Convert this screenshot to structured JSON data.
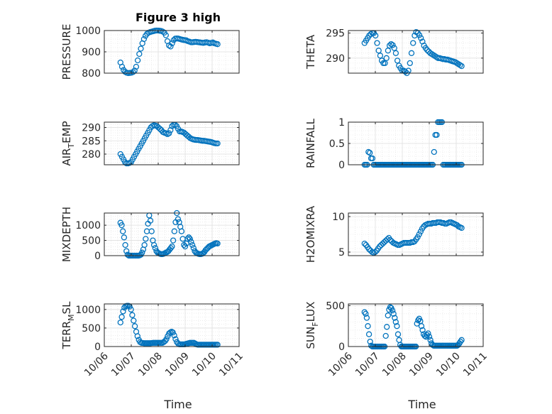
{
  "figure": {
    "title": "Figure 3 high",
    "xlabel": "Time"
  },
  "x_tick_labels": [
    "10/06",
    "10/07",
    "10/08",
    "10/09",
    "10/10",
    "10/11"
  ],
  "colors": {
    "marker": "#0072BD",
    "grid": "#dfdfdf",
    "axis": "#262626"
  },
  "chart_data": [
    {
      "type": "scatter",
      "name": "pressure",
      "ylabel": "PRESSURE",
      "ylim": [
        800,
        1000
      ],
      "yticks": [
        800,
        900,
        1000
      ],
      "y": [
        850,
        830,
        815,
        806,
        802,
        800,
        801,
        802,
        805,
        812,
        830,
        860,
        890,
        915,
        940,
        960,
        975,
        985,
        990,
        993,
        995,
        997,
        999,
        1000,
        1000,
        999,
        998,
        995,
        990,
        978,
        950,
        930,
        925,
        940,
        955,
        962,
        963,
        962,
        960,
        958,
        956,
        955,
        954,
        950,
        948,
        945,
        945,
        946,
        947,
        946,
        945,
        944,
        943,
        942,
        944,
        945,
        943,
        940,
        942,
        944,
        940,
        938,
        936
      ]
    },
    {
      "type": "scatter",
      "name": "theta",
      "ylabel": "THETA",
      "ylim": [
        287,
        295.5
      ],
      "yticks": [
        290,
        295
      ],
      "y": [
        293,
        293.5,
        294,
        294.5,
        294.8,
        295,
        295,
        294.5,
        293,
        291.5,
        290.5,
        289.5,
        289,
        289,
        290,
        291.5,
        292.5,
        292.8,
        292.6,
        292,
        291,
        289.5,
        288.5,
        288,
        287.5,
        287.5,
        287.3,
        287,
        287.5,
        289,
        291,
        293,
        294.5,
        295.2,
        295,
        294.6,
        294,
        293.3,
        292.5,
        292,
        291.6,
        291.3,
        291,
        290.8,
        290.6,
        290.4,
        290.2,
        290,
        290,
        289.9,
        289.8,
        289.8,
        289.7,
        289.7,
        289.6,
        289.5,
        289.4,
        289.3,
        289.2,
        289,
        288.8,
        288.6,
        288.4
      ]
    },
    {
      "type": "scatter",
      "name": "air_temp",
      "ylabel": "AIR_TEMP",
      "ylabel_display": {
        "main": "AIR",
        "sub": "T",
        "rest": "EMP"
      },
      "ylim": [
        276,
        292
      ],
      "yticks": [
        280,
        285,
        290
      ],
      "y": [
        280,
        279,
        278,
        277,
        276.5,
        276.5,
        276.7,
        277,
        278,
        279,
        280,
        281,
        282,
        283,
        284,
        285,
        286,
        287,
        288,
        289,
        290,
        290.5,
        290.8,
        290.7,
        290.5,
        290,
        289.5,
        289,
        288.3,
        288,
        287.8,
        287.5,
        287.8,
        289,
        290.5,
        291,
        291,
        290.5,
        289.5,
        288.5,
        288.5,
        288.3,
        288,
        287.5,
        287,
        286.5,
        286,
        285.7,
        285.5,
        285.4,
        285.3,
        285.3,
        285.2,
        285.1,
        285,
        285,
        284.9,
        284.8,
        284.7,
        284.6,
        284.5,
        284.3,
        284.1,
        284,
        284
      ]
    },
    {
      "type": "scatter",
      "name": "rainfall",
      "ylabel": "RAINFALL",
      "ylim": [
        0,
        1
      ],
      "yticks": [
        0,
        0.5,
        1
      ],
      "y": [
        0,
        0,
        0,
        0.3,
        0.28,
        0.15,
        0.15,
        0,
        0,
        0,
        0,
        0,
        0,
        0,
        0,
        0,
        0,
        0,
        0,
        0,
        0,
        0,
        0,
        0,
        0,
        0,
        0,
        0,
        0,
        0,
        0,
        0,
        0,
        0,
        0,
        0,
        0,
        0,
        0,
        0,
        0,
        0,
        0,
        0,
        0,
        0,
        0,
        0,
        0,
        0,
        0,
        0,
        0,
        0.3,
        0.7,
        0.7,
        1,
        1,
        1,
        1,
        0,
        0,
        0,
        0,
        0,
        0,
        0,
        0,
        0,
        0,
        0,
        0,
        0,
        0,
        0
      ]
    },
    {
      "type": "scatter",
      "name": "mixdepth",
      "ylabel": "MIXDEPTH",
      "ylim": [
        0,
        1400
      ],
      "yticks": [
        0,
        500,
        1000
      ],
      "y": [
        1080,
        1000,
        800,
        600,
        350,
        150,
        30,
        0,
        0,
        0,
        0,
        0,
        0,
        0,
        0,
        0,
        10,
        30,
        100,
        200,
        350,
        550,
        800,
        1050,
        1320,
        1150,
        800,
        500,
        350,
        250,
        150,
        100,
        80,
        60,
        50,
        50,
        60,
        80,
        100,
        120,
        150,
        200,
        250,
        300,
        500,
        800,
        1100,
        1400,
        1200,
        1100,
        950,
        800,
        550,
        350,
        300,
        400,
        550,
        600,
        550,
        450,
        350,
        250,
        150,
        100,
        80,
        60,
        50,
        50,
        60,
        80,
        120,
        180,
        220,
        260,
        300,
        320,
        340,
        360,
        380,
        400,
        410,
        400
      ]
    },
    {
      "type": "scatter",
      "name": "h2omixra",
      "ylabel": "H2OMIXRA",
      "ylim": [
        4.5,
        10.5
      ],
      "yticks": [
        5,
        10
      ],
      "y": [
        6.2,
        6,
        5.7,
        5.4,
        5.2,
        5,
        4.9,
        5,
        5.2,
        5.5,
        5.8,
        6,
        6.2,
        6.4,
        6.6,
        6.8,
        7,
        6.7,
        6.5,
        6.3,
        6.2,
        6.1,
        6,
        6,
        6.1,
        6.2,
        6.3,
        6.3,
        6.3,
        6.3,
        6.3,
        6.4,
        6.4,
        6.5,
        6.8,
        7.1,
        7.5,
        7.9,
        8.3,
        8.6,
        8.8,
        8.9,
        9,
        9,
        9,
        9.1,
        9.1,
        9.1,
        9.2,
        9.2,
        9.2,
        9.1,
        9.1,
        9,
        9,
        9.1,
        9.2,
        9.2,
        9.1,
        9,
        8.9,
        8.8,
        8.6,
        8.5,
        8.4
      ]
    },
    {
      "type": "scatter",
      "name": "terr_msl",
      "ylabel": "TERR_MSL",
      "ylabel_display": {
        "main": "TERR",
        "sub": "M",
        "rest": "SL"
      },
      "ylim": [
        0,
        1150
      ],
      "yticks": [
        0,
        500,
        1000
      ],
      "y": [
        650,
        800,
        950,
        1050,
        1090,
        1100,
        1100,
        1080,
        1000,
        850,
        700,
        550,
        400,
        280,
        180,
        120,
        100,
        95,
        90,
        90,
        90,
        90,
        90,
        90,
        95,
        100,
        100,
        100,
        100,
        100,
        100,
        100,
        100,
        120,
        150,
        200,
        280,
        350,
        380,
        400,
        380,
        300,
        200,
        120,
        80,
        60,
        60,
        60,
        60,
        60,
        70,
        80,
        90,
        100,
        100,
        100,
        100,
        80,
        60,
        50,
        50,
        50,
        50,
        50,
        50,
        50,
        50,
        50,
        50,
        50,
        50,
        50,
        50,
        50,
        50
      ]
    },
    {
      "type": "scatter",
      "name": "sun_flux",
      "ylabel": "SUN_FLUX",
      "ylabel_display": {
        "main": "SUN",
        "sub": "F",
        "rest": "LUX"
      },
      "ylim": [
        0,
        520
      ],
      "yticks": [
        0,
        500
      ],
      "y": [
        420,
        400,
        350,
        250,
        150,
        60,
        10,
        0,
        0,
        0,
        0,
        0,
        0,
        0,
        0,
        0,
        0,
        0,
        0,
        130,
        240,
        380,
        450,
        480,
        470,
        440,
        400,
        350,
        300,
        250,
        150,
        80,
        20,
        0,
        0,
        0,
        0,
        0,
        0,
        0,
        0,
        0,
        0,
        0,
        0,
        0,
        0,
        280,
        320,
        340,
        310,
        250,
        200,
        150,
        130,
        120,
        140,
        160,
        120,
        80,
        40,
        20,
        10,
        10,
        10,
        10,
        10,
        10,
        10,
        10,
        10,
        10,
        10,
        10,
        10,
        10,
        10,
        10,
        10,
        10,
        10,
        10,
        10,
        10,
        20,
        40,
        60,
        80
      ]
    }
  ]
}
